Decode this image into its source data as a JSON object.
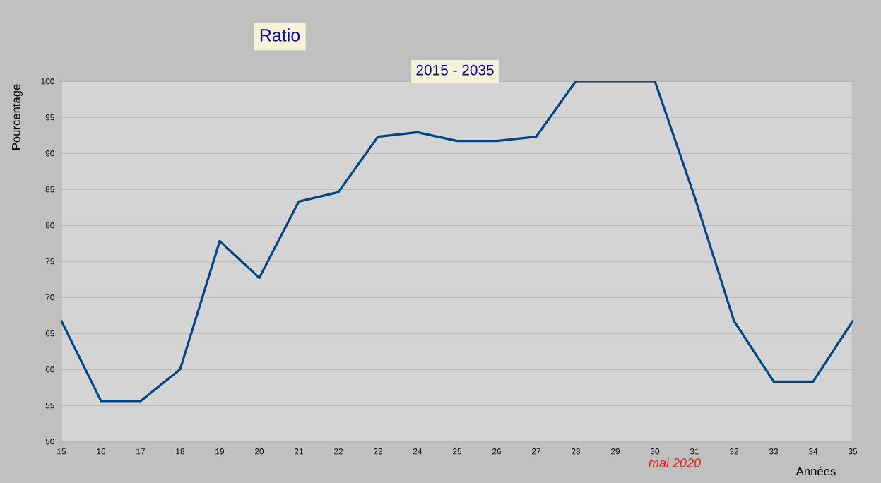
{
  "chart_data": {
    "type": "line",
    "title": "Ratio",
    "subtitle": "2015 - 2035",
    "xlabel": "Années",
    "ylabel": "Pourcentage",
    "annotations": [
      "mai 2020"
    ],
    "x": [
      15,
      16,
      17,
      18,
      19,
      20,
      21,
      22,
      23,
      24,
      25,
      26,
      27,
      28,
      29,
      30,
      31,
      32,
      33,
      34,
      35
    ],
    "series": [
      {
        "color": "#004586",
        "values": [
          66.7,
          55.6,
          55.6,
          60,
          77.8,
          72.7,
          83.3,
          84.6,
          92.3,
          92.9,
          91.7,
          91.7,
          92.3,
          100,
          100,
          100,
          84,
          66.7,
          58.3,
          58.3,
          66.7
        ]
      }
    ],
    "xlim": [
      15,
      35
    ],
    "xticks": [
      15,
      16,
      17,
      18,
      19,
      20,
      21,
      22,
      23,
      24,
      25,
      26,
      27,
      28,
      29,
      30,
      31,
      32,
      33,
      34,
      35
    ],
    "ylim": [
      50,
      100
    ],
    "yticks": [
      50,
      55,
      60,
      65,
      70,
      75,
      80,
      85,
      90,
      95,
      100
    ],
    "grid": "y",
    "marker": "none",
    "line_style": "solid"
  }
}
